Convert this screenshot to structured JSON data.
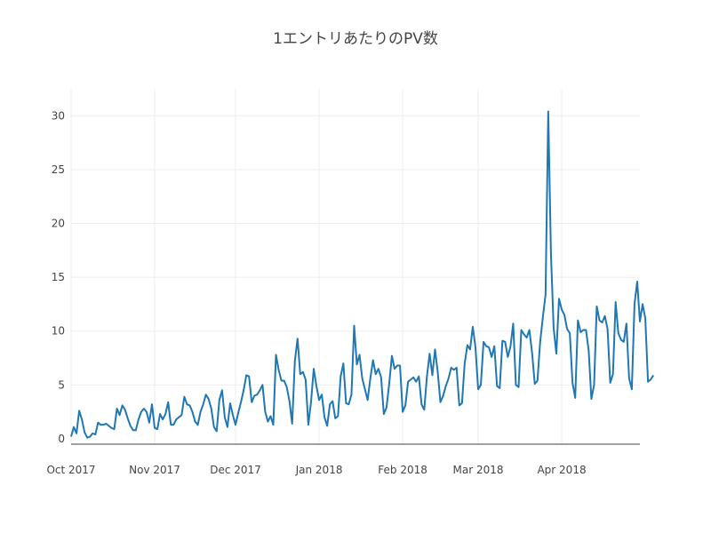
{
  "chart_data": {
    "type": "line",
    "title": "1エントリあたりのPV数",
    "xlabel": "",
    "ylabel": "",
    "x_start": "2017-10-01",
    "xlim": [
      "2017-10-01",
      "2018-04-30"
    ],
    "ylim": [
      -0.5,
      32.5
    ],
    "grid": true,
    "x_ticks": [
      {
        "date": "2017-10-01",
        "label": "Oct 2017"
      },
      {
        "date": "2017-11-01",
        "label": "Nov 2017"
      },
      {
        "date": "2017-12-01",
        "label": "Dec 2017"
      },
      {
        "date": "2018-01-01",
        "label": "Jan 2018"
      },
      {
        "date": "2018-02-01",
        "label": "Feb 2018"
      },
      {
        "date": "2018-03-01",
        "label": "Mar 2018"
      },
      {
        "date": "2018-04-01",
        "label": "Apr 2018"
      }
    ],
    "y_ticks": [
      0,
      5,
      10,
      15,
      20,
      25,
      30
    ],
    "series": [
      {
        "name": "",
        "color": "#1f77b4",
        "values": [
          0.2,
          1.1,
          0.5,
          2.6,
          1.8,
          0.6,
          0.1,
          0.2,
          0.5,
          0.4,
          1.5,
          1.3,
          1.3,
          1.4,
          1.2,
          1.0,
          0.9,
          2.8,
          2.2,
          3.1,
          2.7,
          1.9,
          1.2,
          0.8,
          0.8,
          1.8,
          2.5,
          2.8,
          2.5,
          1.5,
          3.2,
          1.0,
          0.9,
          2.3,
          1.8,
          2.3,
          3.4,
          1.3,
          1.3,
          1.8,
          2.0,
          2.2,
          3.9,
          3.2,
          3.1,
          2.5,
          1.6,
          1.3,
          2.5,
          3.2,
          4.1,
          3.7,
          2.8,
          1.1,
          0.7,
          3.6,
          4.5,
          2.0,
          1.1,
          3.3,
          2.2,
          1.3,
          2.4,
          3.4,
          4.5,
          5.9,
          5.8,
          3.4,
          4.0,
          4.1,
          4.5,
          5.0,
          2.5,
          1.6,
          2.1,
          1.3,
          7.8,
          6.4,
          5.4,
          5.4,
          4.8,
          3.5,
          1.4,
          7.2,
          9.3,
          6.0,
          6.2,
          5.5,
          1.3,
          3.4,
          6.5,
          4.9,
          3.6,
          4.1,
          2.0,
          1.2,
          3.2,
          3.5,
          1.9,
          2.1,
          5.8,
          7.0,
          3.3,
          3.2,
          4.1,
          10.5,
          6.9,
          7.8,
          5.6,
          4.6,
          3.6,
          5.6,
          7.3,
          6.0,
          6.5,
          5.7,
          2.3,
          2.9,
          5.1,
          7.7,
          6.5,
          6.8,
          6.8,
          2.5,
          3.1,
          5.3,
          5.5,
          5.7,
          5.3,
          5.8,
          3.2,
          2.7,
          5.8,
          7.9,
          5.9,
          8.3,
          6.2,
          3.4,
          4.0,
          4.9,
          5.6,
          6.6,
          6.4,
          6.6,
          3.1,
          3.3,
          7.0,
          8.7,
          8.3,
          10.4,
          8.5,
          4.6,
          5.0,
          9.0,
          8.6,
          8.5,
          7.6,
          8.6,
          4.9,
          4.7,
          9.1,
          9.0,
          7.6,
          8.6,
          10.7,
          5.0,
          4.8,
          10.1,
          9.7,
          9.4,
          10.1,
          8.0,
          5.1,
          5.4,
          9.0,
          11.3,
          13.4,
          30.4,
          17.2,
          10.3,
          7.9,
          13.0,
          12.0,
          11.5,
          10.2,
          9.8,
          5.2,
          3.8,
          11.0,
          9.9,
          10.1,
          10.1,
          8.2,
          3.7,
          5.0,
          12.3,
          11.0,
          10.8,
          11.4,
          10.2,
          5.2,
          6.0,
          12.7,
          9.8,
          9.2,
          9.0,
          10.7,
          5.6,
          4.6,
          12.5,
          14.6,
          10.9,
          12.5,
          11.2,
          5.3,
          5.5,
          5.9
        ]
      }
    ]
  }
}
